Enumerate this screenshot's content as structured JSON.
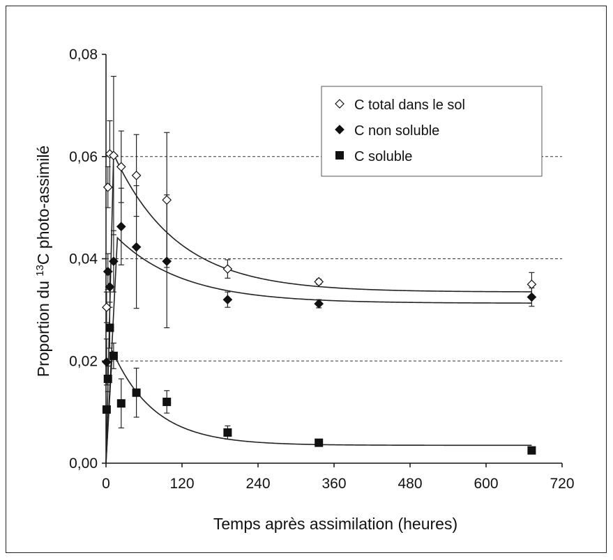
{
  "chart_data": {
    "type": "scatter",
    "title": "",
    "xlabel": "Temps après assimilation (heures)",
    "ylabel_prefix": "Proportion du ",
    "ylabel_sup": "13",
    "ylabel_suffix": "C photo-assimilé",
    "xlim": [
      0,
      720
    ],
    "ylim": [
      0,
      0.08
    ],
    "xticks": [
      0,
      120,
      240,
      360,
      480,
      600,
      720
    ],
    "xtick_labels": [
      "0",
      "120",
      "240",
      "360",
      "480",
      "600",
      "720"
    ],
    "yticks": [
      0,
      0.02,
      0.04,
      0.06,
      0.08
    ],
    "ytick_labels": [
      "0,00",
      "0,02",
      "0,04",
      "0,06",
      "0,08"
    ],
    "gridlines_y": [
      0.02,
      0.04,
      0.06
    ],
    "legend_position": "top-right",
    "series": [
      {
        "name": "C total dans le sol",
        "marker": "open-diamond",
        "points": [
          {
            "x": 1,
            "y": 0.0305,
            "err": 0.003
          },
          {
            "x": 3,
            "y": 0.054,
            "err": 0.004
          },
          {
            "x": 6,
            "y": 0.0605,
            "err": 0.0065
          },
          {
            "x": 12,
            "y": 0.0602,
            "err": 0.0155
          },
          {
            "x": 24,
            "y": 0.058,
            "err": 0.007
          },
          {
            "x": 48,
            "y": 0.0563,
            "err": 0.008
          },
          {
            "x": 96,
            "y": 0.0515,
            "err": 0.0132
          },
          {
            "x": 192,
            "y": 0.038,
            "err": 0.0018
          },
          {
            "x": 336,
            "y": 0.0355,
            "err": 0.0005
          },
          {
            "x": 672,
            "y": 0.035,
            "err": 0.0023
          }
        ],
        "fit": {
          "a": 0.0335,
          "b": 0.027,
          "k": 0.01,
          "tmax": 12
        }
      },
      {
        "name": "C non soluble",
        "marker": "filled-diamond",
        "points": [
          {
            "x": 1,
            "y": 0.0198,
            "err": 0.0045
          },
          {
            "x": 3,
            "y": 0.0375,
            "err": 0.0035
          },
          {
            "x": 6,
            "y": 0.0345,
            "err": 0.003
          },
          {
            "x": 12,
            "y": 0.0395,
            "err": 0.006
          },
          {
            "x": 24,
            "y": 0.0463,
            "err": 0.0075
          },
          {
            "x": 48,
            "y": 0.0423,
            "err": 0.012
          },
          {
            "x": 96,
            "y": 0.0395,
            "err": 0.013
          },
          {
            "x": 192,
            "y": 0.032,
            "err": 0.0015
          },
          {
            "x": 336,
            "y": 0.0312,
            "err": 0.0008
          },
          {
            "x": 672,
            "y": 0.0325,
            "err": 0.0018
          }
        ],
        "fit": {
          "a": 0.0313,
          "b": 0.0128,
          "k": 0.0095,
          "tmax": 18
        }
      },
      {
        "name": "C soluble",
        "marker": "filled-square",
        "points": [
          {
            "x": 1,
            "y": 0.0105,
            "err": 0.0005
          },
          {
            "x": 3,
            "y": 0.0165,
            "err": 0.0025
          },
          {
            "x": 6,
            "y": 0.0265,
            "err": 0.004
          },
          {
            "x": 12,
            "y": 0.021,
            "err": 0.0025
          },
          {
            "x": 24,
            "y": 0.0117,
            "err": 0.0048
          },
          {
            "x": 48,
            "y": 0.0138,
            "err": 0.0048
          },
          {
            "x": 96,
            "y": 0.012,
            "err": 0.0022
          },
          {
            "x": 192,
            "y": 0.006,
            "err": 0.0013
          },
          {
            "x": 336,
            "y": 0.004,
            "err": 0.0003
          },
          {
            "x": 672,
            "y": 0.0025,
            "err": 0.0004
          }
        ],
        "fit": {
          "a": 0.0035,
          "b": 0.0185,
          "k": 0.015,
          "tmax": 10
        }
      }
    ]
  }
}
